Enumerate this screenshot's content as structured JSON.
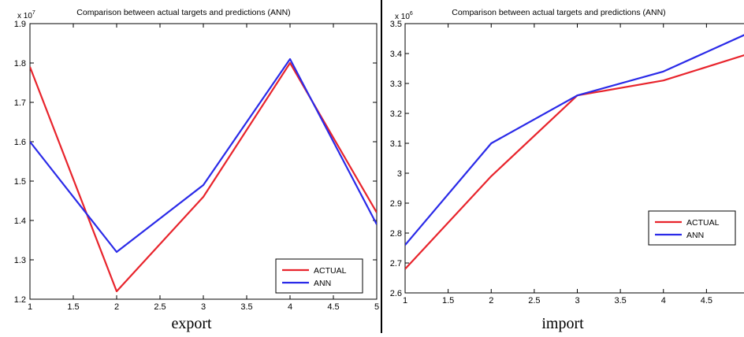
{
  "chart_data": [
    {
      "type": "line",
      "title": "Comparison between actual targets and predictions (ANN)",
      "caption": "export",
      "y_multiplier": "x 10",
      "y_exponent": "7",
      "x": [
        1,
        2,
        3,
        4,
        5
      ],
      "xlim": [
        1,
        5
      ],
      "ylim": [
        1.2,
        1.9
      ],
      "xticks": [
        1,
        1.5,
        2,
        2.5,
        3,
        3.5,
        4,
        4.5,
        5
      ],
      "xtick_labels": [
        "1",
        "1.5",
        "2",
        "2.5",
        "3",
        "3.5",
        "4",
        "4.5",
        "5"
      ],
      "yticks": [
        1.2,
        1.3,
        1.4,
        1.5,
        1.6,
        1.7,
        1.8,
        1.9
      ],
      "ytick_labels": [
        "1.2",
        "1.3",
        "1.4",
        "1.5",
        "1.6",
        "1.7",
        "1.8",
        "1.9"
      ],
      "series": [
        {
          "name": "ACTUAL",
          "color": "#e8242c",
          "values": [
            1.79,
            1.22,
            1.46,
            1.8,
            1.42
          ]
        },
        {
          "name": "ANN",
          "color": "#2a2ae8",
          "values": [
            1.6,
            1.32,
            1.49,
            1.81,
            1.39
          ]
        }
      ],
      "legend": "bottom-right",
      "grid": false
    },
    {
      "type": "line",
      "title": "Comparison between actual targets and predictions (ANN)",
      "caption": "import",
      "y_multiplier": "x 10",
      "y_exponent": "6",
      "x": [
        1,
        2,
        3,
        4,
        5
      ],
      "xlim": [
        1,
        5
      ],
      "ylim": [
        2.6,
        3.5
      ],
      "xticks": [
        1,
        1.5,
        2,
        2.5,
        3,
        3.5,
        4,
        4.5
      ],
      "xtick_labels": [
        "1",
        "1.5",
        "2",
        "2.5",
        "3",
        "3.5",
        "4",
        "4.5"
      ],
      "yticks": [
        2.6,
        2.7,
        2.8,
        2.9,
        3.0,
        3.1,
        3.2,
        3.3,
        3.4,
        3.5
      ],
      "ytick_labels": [
        "2.6",
        "2.7",
        "2.8",
        "2.9",
        "3",
        "3.1",
        "3.2",
        "3.3",
        "3.4",
        "3.5"
      ],
      "series": [
        {
          "name": "ACTUAL",
          "color": "#e8242c",
          "values": [
            2.68,
            2.99,
            3.26,
            3.31,
            3.4
          ]
        },
        {
          "name": "ANN",
          "color": "#2a2ae8",
          "values": [
            2.76,
            3.1,
            3.26,
            3.34,
            3.47
          ]
        }
      ],
      "legend": "middle-right",
      "grid": false
    }
  ]
}
